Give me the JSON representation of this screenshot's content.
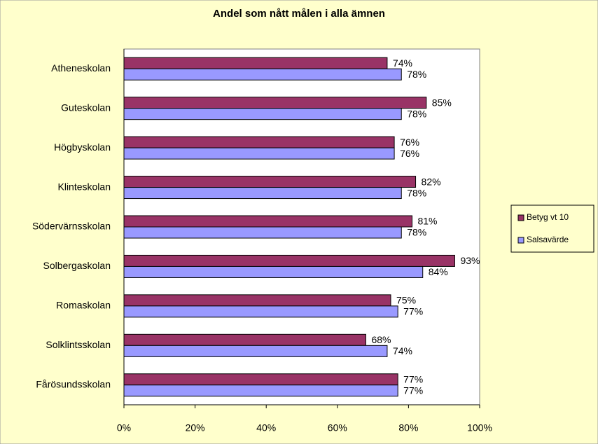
{
  "chart_data": {
    "type": "bar",
    "orientation": "horizontal",
    "title": "Andel som nått målen i alla ämnen",
    "categories": [
      "Atheneskolan",
      "Guteskolan",
      "Högbyskolan",
      "Klinteskolan",
      "Södervärnsskolan",
      "Solbergaskolan",
      "Romaskolan",
      "Solklintsskolan",
      "Fårösundsskolan"
    ],
    "series": [
      {
        "name": "Betyg vt 10",
        "color": "#993366",
        "values": [
          74,
          85,
          76,
          82,
          81,
          93,
          75,
          68,
          77
        ],
        "value_labels": [
          "74%",
          "85%",
          "76%",
          "82%",
          "81%",
          "93%",
          "75%",
          "68%",
          "77%"
        ]
      },
      {
        "name": "Salsavärde",
        "color": "#9999FF",
        "values": [
          78,
          78,
          76,
          78,
          78,
          84,
          77,
          74,
          77
        ],
        "value_labels": [
          "78%",
          "78%",
          "76%",
          "78%",
          "78%",
          "84%",
          "77%",
          "74%",
          "77%"
        ]
      }
    ],
    "xlim": [
      0,
      100
    ],
    "xticks": [
      {
        "value": 0,
        "label": "0%"
      },
      {
        "value": 20,
        "label": "20%"
      },
      {
        "value": 40,
        "label": "40%"
      },
      {
        "value": 60,
        "label": "60%"
      },
      {
        "value": 80,
        "label": "80%"
      },
      {
        "value": 100,
        "label": "100%"
      }
    ],
    "legend": "right"
  }
}
